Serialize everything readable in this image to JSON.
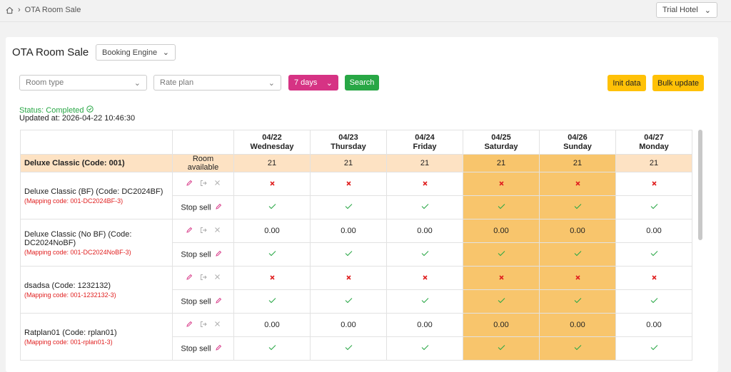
{
  "breadcrumb": {
    "current": "OTA Room Sale"
  },
  "hotel_select": "Trial Hotel",
  "page": {
    "title": "OTA Room Sale",
    "channel": "Booking Engine"
  },
  "filters": {
    "room_type": "Room type",
    "rate_plan": "Rate plan",
    "days": "7 days",
    "search": "Search",
    "init": "Init data",
    "bulk": "Bulk update"
  },
  "status": {
    "label": "Status: Completed",
    "updated": "Updated at: 2026-04-22 10:46:30"
  },
  "table": {
    "dates": [
      {
        "date": "04/22",
        "day": "Wednesday",
        "highlighted": false
      },
      {
        "date": "04/23",
        "day": "Thursday",
        "highlighted": false
      },
      {
        "date": "04/24",
        "day": "Friday",
        "highlighted": false
      },
      {
        "date": "04/25",
        "day": "Saturday",
        "highlighted": true
      },
      {
        "date": "04/26",
        "day": "Sunday",
        "highlighted": true
      },
      {
        "date": "04/27",
        "day": "Monday",
        "highlighted": false
      }
    ],
    "room": {
      "name": "Deluxe Classic (Code: 001)",
      "label": "Room available",
      "values": [
        21,
        21,
        21,
        21,
        21,
        21
      ]
    },
    "stop_sell_label": "Stop sell",
    "rate_plans": [
      {
        "name": "Deluxe Classic (BF) (Code: DC2024BF)",
        "mapping": "(Mapping code: 001-DC2024BF-3)",
        "prices": [
          null,
          null,
          null,
          null,
          null,
          null
        ]
      },
      {
        "name": "Deluxe Classic (No BF) (Code: DC2024NoBF)",
        "mapping": "(Mapping code: 001-DC2024NoBF-3)",
        "prices": [
          "0.00",
          "0.00",
          "0.00",
          "0.00",
          "0.00",
          "0.00"
        ]
      },
      {
        "name": "dsadsa (Code: 1232132)",
        "mapping": "(Mapping code: 001-1232132-3)",
        "prices": [
          null,
          null,
          null,
          null,
          null,
          null
        ]
      },
      {
        "name": "Ratplan01 (Code: rplan01)",
        "mapping": "(Mapping code: 001-rplan01-3)",
        "prices": [
          "0.00",
          "0.00",
          "0.00",
          "0.00",
          "0.00",
          "0.00"
        ]
      }
    ]
  }
}
